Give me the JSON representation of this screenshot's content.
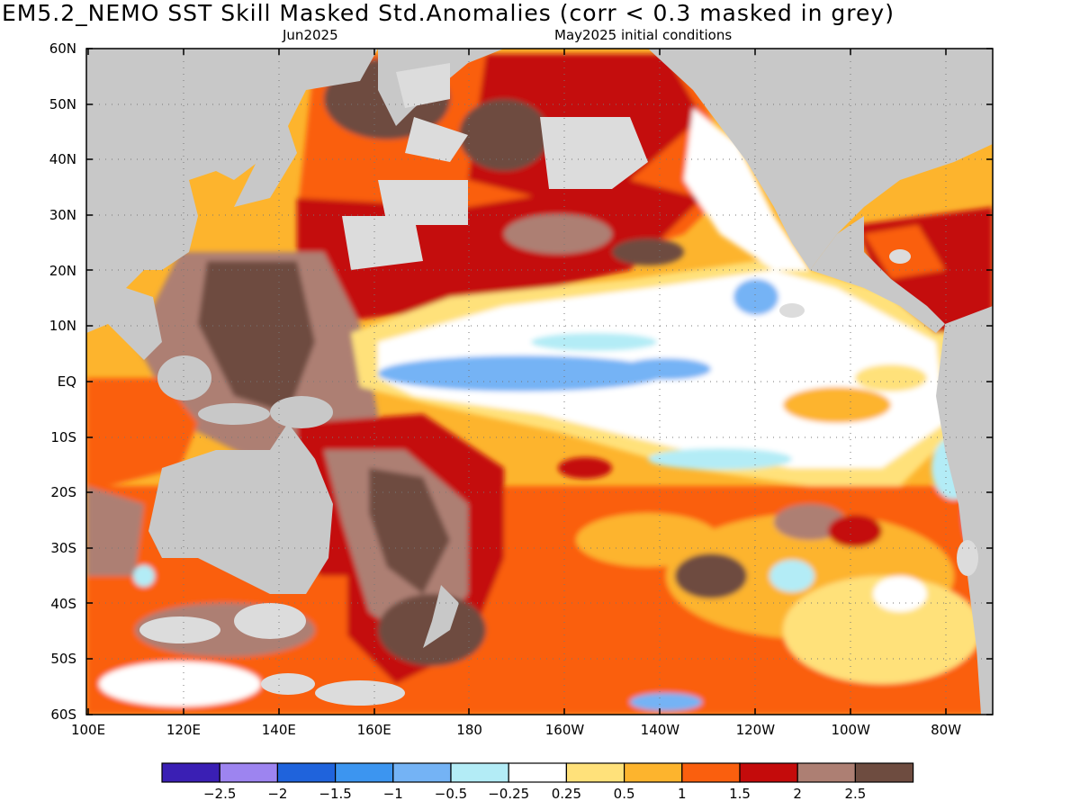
{
  "title": "EM5.2_NEMO  SST Skill Masked Std.Anomalies (corr < 0.3 masked in grey)",
  "subtitle_left": "Jun2025",
  "subtitle_right": "May2025 initial conditions",
  "lat_labels": [
    "60N",
    "50N",
    "40N",
    "30N",
    "20N",
    "10N",
    "EQ",
    "10S",
    "20S",
    "30S",
    "40S",
    "50S",
    "60S"
  ],
  "lon_labels": [
    "100E",
    "120E",
    "140E",
    "160E",
    "180",
    "160W",
    "140W",
    "120W",
    "100W",
    "80W"
  ],
  "colorbar": {
    "colors": [
      "#3a1fb4",
      "#9d84f0",
      "#1f63dc",
      "#3c95f0",
      "#74b3f5",
      "#b3ecf6",
      "#ffffff",
      "#ffe17a",
      "#fdb42d",
      "#fa5f0e",
      "#c40b0b",
      "#ad7f73",
      "#6e4c40"
    ],
    "labels": [
      "−2.5",
      "−2",
      "−1.5",
      "−1",
      "−0.5",
      "−0.25",
      "0.25",
      "0.5",
      "1",
      "1.5",
      "2",
      "2.5"
    ]
  },
  "colors": {
    "land": "#c8c8c8",
    "masked": "#dcdcdc"
  }
}
